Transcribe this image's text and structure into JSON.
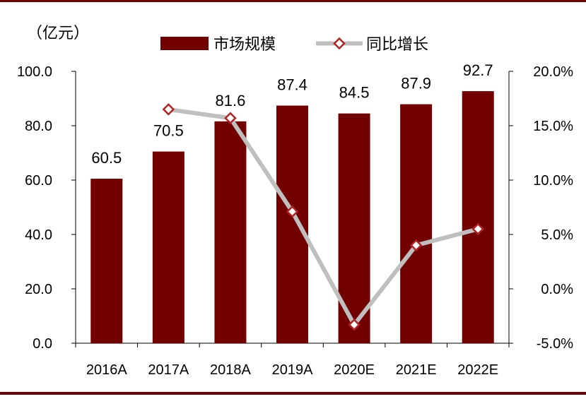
{
  "chart_data": {
    "type": "bar",
    "unit_label": "（亿元）",
    "categories": [
      "2016A",
      "2017A",
      "2018A",
      "2019A",
      "2020E",
      "2021E",
      "2022E"
    ],
    "series": [
      {
        "name": "市场规模",
        "type": "bar",
        "axis": "left",
        "values": [
          60.5,
          70.5,
          81.6,
          87.4,
          84.5,
          87.9,
          92.7
        ],
        "data_labels": [
          "60.5",
          "70.5",
          "81.6",
          "87.4",
          "84.5",
          "87.9",
          "92.7"
        ],
        "color": "#720000"
      },
      {
        "name": "同比增长",
        "type": "line",
        "axis": "right",
        "values": [
          null,
          16.5,
          15.7,
          7.1,
          -3.3,
          4.0,
          5.5
        ],
        "color": "#bfbfbf",
        "marker_color": "#b22222"
      }
    ],
    "y_left": {
      "lim": [
        0,
        100
      ],
      "ticks": [
        "0.0",
        "20.0",
        "40.0",
        "60.0",
        "80.0",
        "100.0"
      ]
    },
    "y_right": {
      "lim": [
        -5,
        20
      ],
      "ticks": [
        "-5.0%",
        "0.0%",
        "5.0%",
        "10.0%",
        "15.0%",
        "20.0%"
      ]
    },
    "grid": false,
    "legend_position": "top-center",
    "frame_color": "#720000"
  }
}
